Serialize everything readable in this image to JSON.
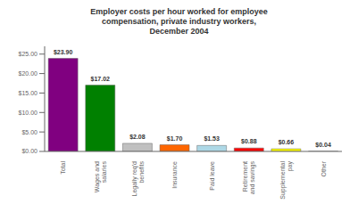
{
  "chart_data": {
    "type": "bar",
    "title": "Employer costs per hour worked for employee\ncompensation, private industry workers,\nDecember 2004",
    "categories": [
      "Total",
      "Wages and\nsalaries",
      "Legally req'd\nbenefits",
      "Insurance",
      "Paid leave",
      "Retirement\nand savings",
      "Supplemental\npay",
      "Other"
    ],
    "values": [
      23.9,
      17.02,
      2.08,
      1.7,
      1.53,
      0.88,
      0.66,
      0.04
    ],
    "value_labels": [
      "$23.90",
      "$17.02",
      "$2.08",
      "$1.70",
      "$1.53",
      "$0.88",
      "$0.66",
      "$0.04"
    ],
    "data_labels": true,
    "colors": [
      "#800080",
      "#008000",
      "#c0c0c0",
      "#FF6600",
      "#add8e6",
      "#FF0000",
      "#FFFF00",
      "#ffffff"
    ],
    "ylim": [
      0,
      27
    ],
    "yticks": [
      {
        "value": 0,
        "label": "$0.00"
      },
      {
        "value": 5,
        "label": "$5.00"
      },
      {
        "value": 10,
        "label": "$10.00"
      },
      {
        "value": 15,
        "label": "$15.00"
      },
      {
        "value": 20,
        "label": "$20.00"
      },
      {
        "value": 25,
        "label": "$25.00"
      }
    ],
    "grid": false
  }
}
